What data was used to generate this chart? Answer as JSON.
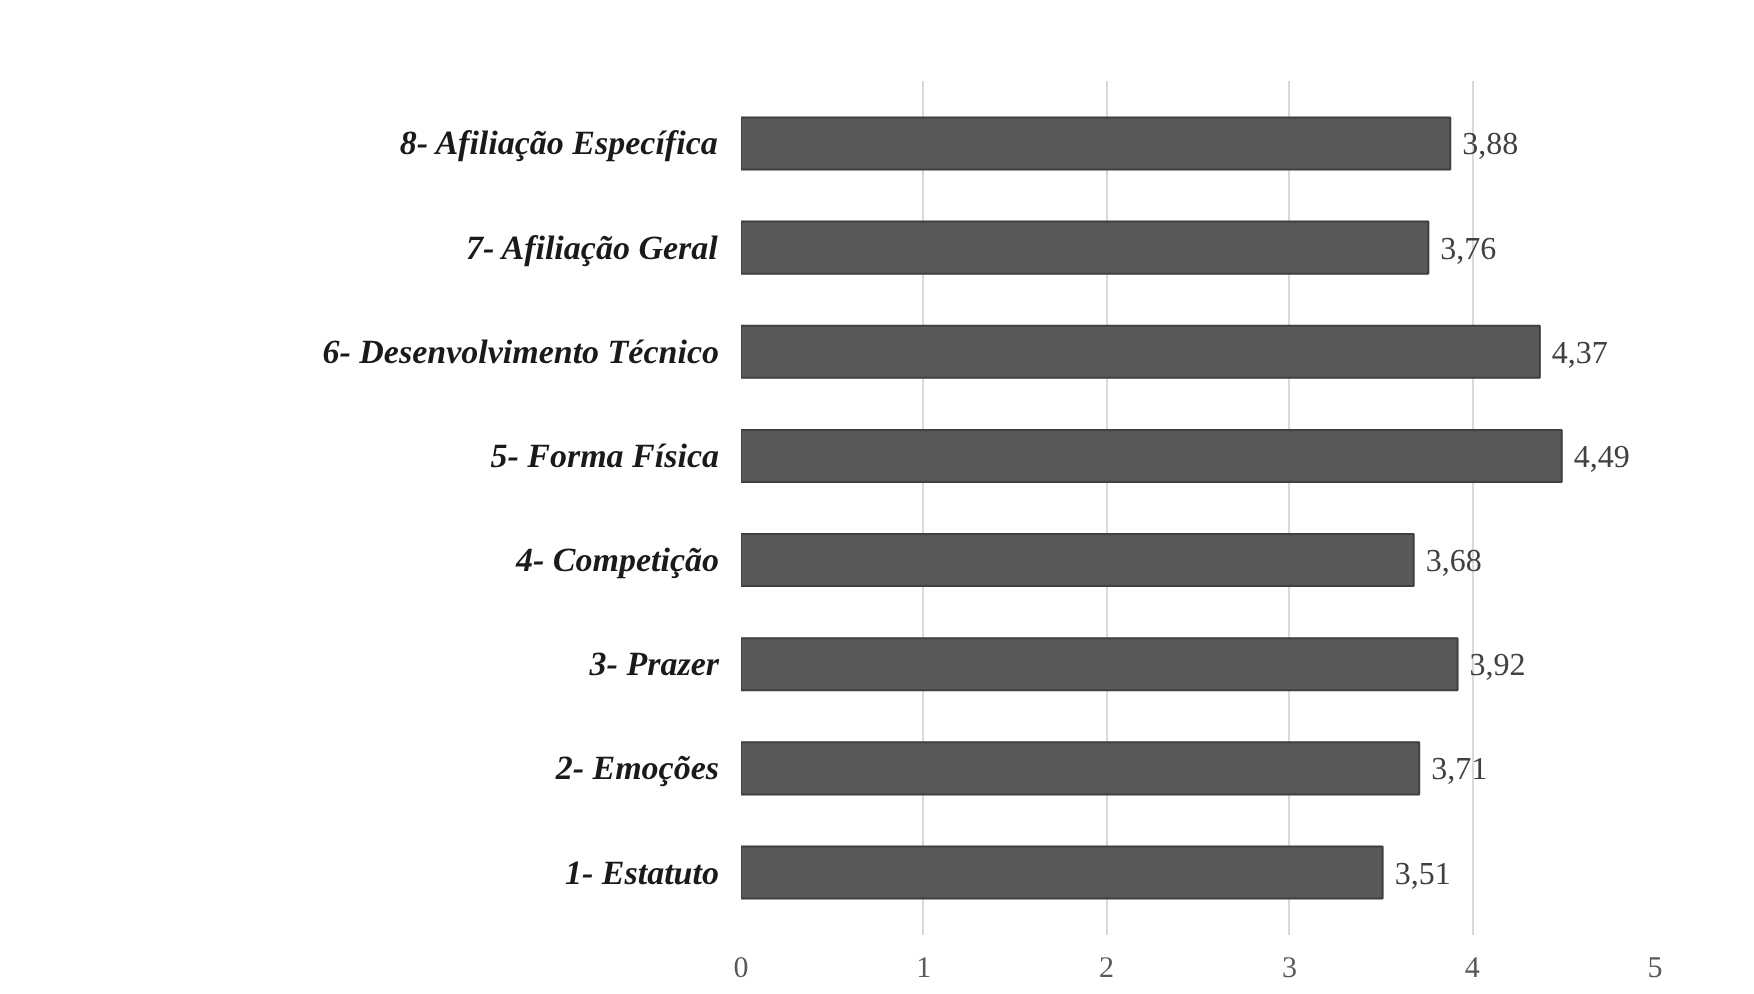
{
  "chart_data": {
    "type": "bar",
    "orientation": "horizontal",
    "categories": [
      "8- Afiliação Específica",
      "7- Afiliação Geral",
      "6- Desenvolvimento Técnico",
      "5- Forma Física",
      "4- Competição",
      "3- Prazer",
      "2- Emoções",
      "1- Estatuto"
    ],
    "values": [
      3.88,
      3.76,
      4.37,
      4.49,
      3.68,
      3.92,
      3.71,
      3.51
    ],
    "value_labels": [
      "3,88",
      "3,76",
      "4,37",
      "4,49",
      "3,68",
      "3,92",
      "3,71",
      "3,51"
    ],
    "color": "#595959",
    "xlim": [
      0,
      5
    ],
    "xticks": [
      0,
      1,
      2,
      3,
      4,
      5
    ],
    "grid": "x"
  }
}
